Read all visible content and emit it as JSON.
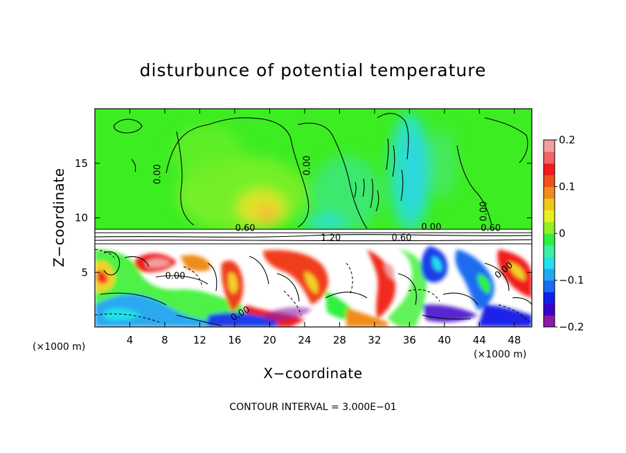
{
  "chart_data": {
    "type": "heatmap",
    "title": "disturbunce of potential temperature",
    "xlabel": "X−coordinate",
    "ylabel": "Z−coordinate",
    "x_unit": "(×1000 m)",
    "z_unit": "(×1000 m)",
    "xlim": [
      0,
      50
    ],
    "ylim": [
      0,
      20
    ],
    "x_ticks": [
      4,
      8,
      12,
      16,
      20,
      24,
      28,
      32,
      36,
      40,
      44,
      48
    ],
    "y_ticks": [
      5,
      10,
      15
    ],
    "x_tick_labels": [
      "4",
      "8",
      "12",
      "16",
      "20",
      "24",
      "28",
      "32",
      "36",
      "40",
      "44",
      "48"
    ],
    "y_tick_labels": [
      "5",
      "10",
      "15"
    ],
    "colorbar": {
      "min": -0.2,
      "max": 0.2,
      "ticks": [
        0.2,
        0.1,
        0,
        -0.1,
        -0.2
      ],
      "tick_labels": [
        "0.2",
        "0.1",
        "0",
        "−0.1",
        "−0.2"
      ],
      "colors": [
        "#8c1aa6",
        "#3a00c8",
        "#1020e8",
        "#1a6cf0",
        "#22a8f0",
        "#22e0f0",
        "#3cf0a0",
        "#30f040",
        "#90f020",
        "#e6f020",
        "#f0c81c",
        "#f08c1c",
        "#f0501c",
        "#f01c1c",
        "#f06464",
        "#f0a0a0"
      ]
    },
    "contour_interval_label": "CONTOUR INTERVAL = 3.000E−01",
    "contour_labels": [
      {
        "text": "0.00",
        "x": 7.5,
        "z": 14.0,
        "angle": -90
      },
      {
        "text": "0.00",
        "x": 24.6,
        "z": 14.8,
        "angle": -90
      },
      {
        "text": "0.00",
        "x": 44.8,
        "z": 10.6,
        "angle": -90
      },
      {
        "text": "0.60",
        "x": 17.2,
        "z": 8.8,
        "angle": 0
      },
      {
        "text": "0.00",
        "x": 38.5,
        "z": 8.9,
        "angle": 0
      },
      {
        "text": "0.60",
        "x": 45.3,
        "z": 8.8,
        "angle": 0
      },
      {
        "text": "1.20",
        "x": 27.0,
        "z": 7.9,
        "angle": 0
      },
      {
        "text": "0.60",
        "x": 35.1,
        "z": 7.9,
        "angle": 0
      },
      {
        "text": "0.00",
        "x": 9.2,
        "z": 4.4,
        "angle": 0
      },
      {
        "text": "0.00",
        "x": 16.8,
        "z": 1.0,
        "angle": -30
      },
      {
        "text": "0.00",
        "x": 47.0,
        "z": 5.0,
        "angle": -40
      }
    ],
    "grid": false,
    "legend": "colorbar-right"
  }
}
